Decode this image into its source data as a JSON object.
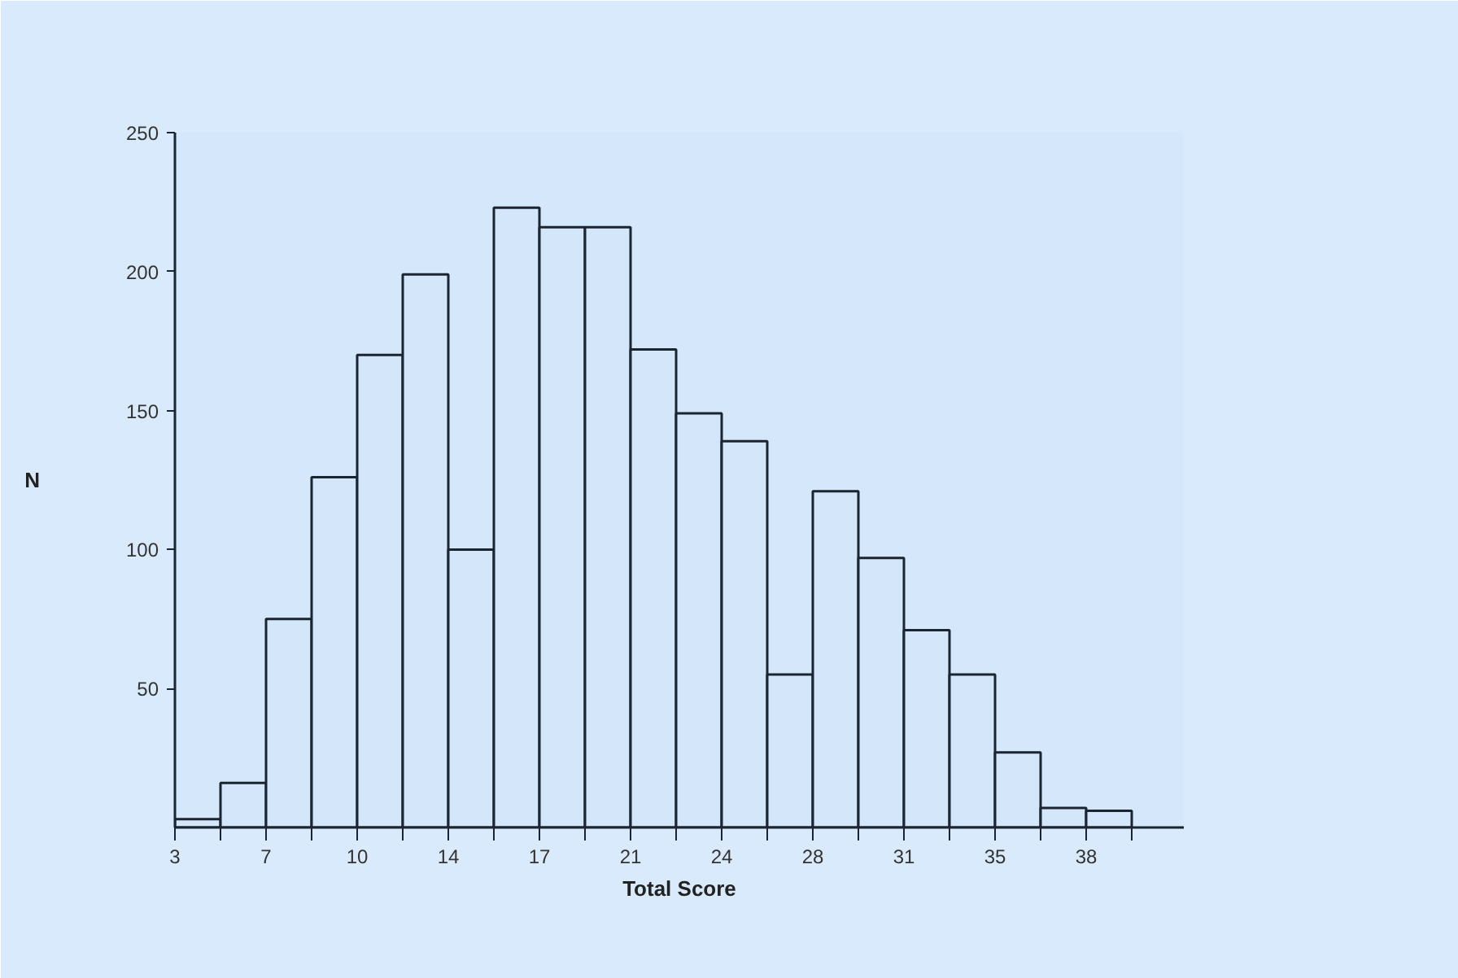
{
  "chart_data": {
    "type": "histogram",
    "xlabel": "Total Score",
    "ylabel": "N",
    "bins": [
      3,
      4.75,
      6.5,
      8.25,
      10,
      11.75,
      13.5,
      15.25,
      17,
      18.75,
      20.5,
      22.25,
      24,
      25.75,
      27.5,
      29.25,
      31,
      32.75,
      34.5,
      36.25,
      38,
      39.75
    ],
    "values": [
      3,
      16,
      75,
      126,
      170,
      199,
      100,
      223,
      216,
      216,
      172,
      149,
      139,
      55,
      121,
      97,
      71,
      55,
      27,
      7,
      6
    ],
    "color": "#d4e6fa",
    "xlim": [
      3,
      41.75
    ],
    "ylim": [
      0,
      250
    ],
    "xticks": [
      3,
      {
        "value": 4.75,
        "label": null
      },
      {
        "value": 6.5,
        "label": "7"
      },
      {
        "value": 8.25,
        "label": null
      },
      10,
      {
        "value": 11.75,
        "label": null
      },
      {
        "value": 13.5,
        "label": "14"
      },
      {
        "value": 15.25,
        "label": null
      },
      17,
      {
        "value": 18.75,
        "label": null
      },
      {
        "value": 20.5,
        "label": "21"
      },
      {
        "value": 22.25,
        "label": null
      },
      24,
      {
        "value": 25.75,
        "label": null
      },
      {
        "value": 27.5,
        "label": "28"
      },
      {
        "value": 29.25,
        "label": null
      },
      31,
      {
        "value": 32.75,
        "label": null
      },
      {
        "value": 34.5,
        "label": "35"
      },
      {
        "value": 36.25,
        "label": null
      },
      38,
      {
        "value": 39.75,
        "label": null
      }
    ],
    "yticks": [
      50,
      100,
      150,
      200,
      250
    ],
    "grid": false
  }
}
